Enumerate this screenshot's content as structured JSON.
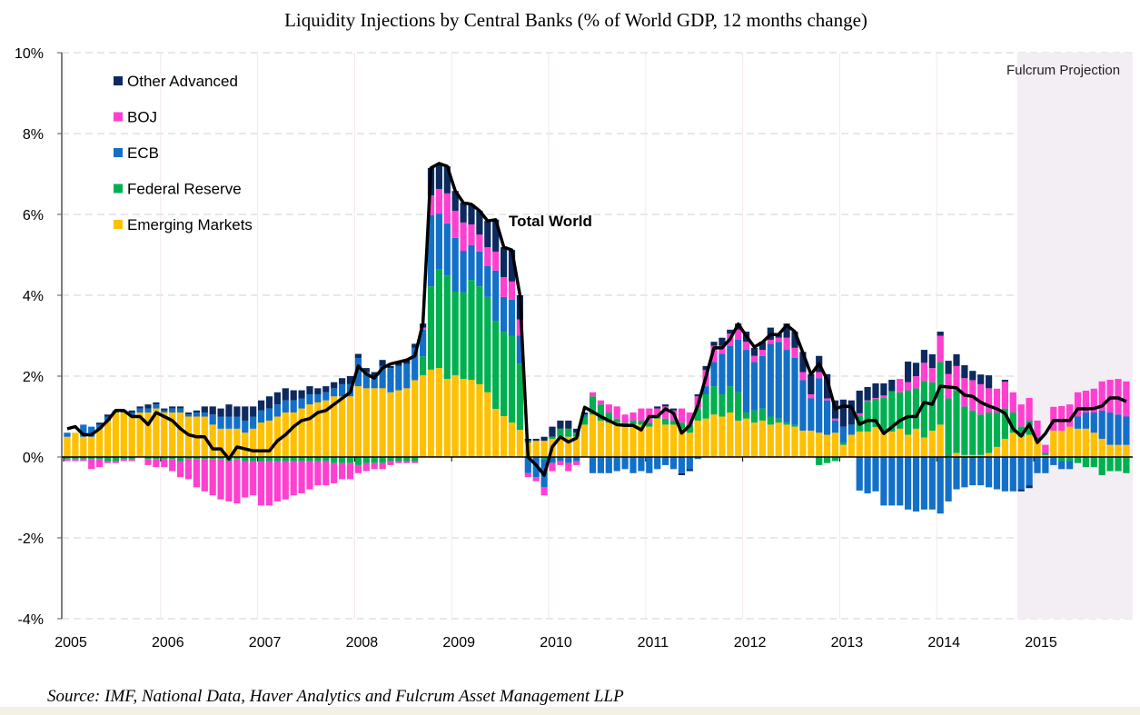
{
  "chart_data": {
    "type": "bar",
    "stacked": true,
    "title": "Liquidity Injections by Central Banks (% of World GDP, 12 months change)",
    "source": "Source: IMF, National Data, Haver Analytics and Fulcrum Asset Management LLP",
    "frequency": "monthly",
    "ylim": [
      -4,
      10
    ],
    "yticks": [
      {
        "value": 10,
        "label": "10%"
      },
      {
        "value": 8,
        "label": "8%"
      },
      {
        "value": 6,
        "label": "6%"
      },
      {
        "value": 4,
        "label": "4%"
      },
      {
        "value": 2,
        "label": "2%"
      },
      {
        "value": 0,
        "label": "0%"
      },
      {
        "value": -2,
        "label": "-2%"
      },
      {
        "value": -4,
        "label": "-4%"
      }
    ],
    "xticks": [
      "2005",
      "2006",
      "2007",
      "2008",
      "2009",
      "2010",
      "2011",
      "2012",
      "2013",
      "2014",
      "2015"
    ],
    "grid": "horizontal dashed",
    "legend_placement": "top-left",
    "projection": {
      "label": "Fulcrum Projection",
      "start": "2014-11",
      "end": "2015-12",
      "color": "#f3eef3"
    },
    "line_label": "Total World",
    "series": [
      {
        "name": "Emerging Markets",
        "color": "#ffc000",
        "values_by_year": {
          "2005": [
            0.5,
            0.6,
            0.5,
            0.5,
            0.7,
            0.9,
            1.1,
            1.1,
            1.0,
            1.1,
            1.1,
            1.2
          ],
          "2006": [
            1.1,
            1.1,
            1.1,
            1.0,
            1.0,
            1.0,
            0.8,
            0.7,
            0.7,
            0.7,
            0.6,
            0.7
          ],
          "2007": [
            0.85,
            0.9,
            1.0,
            1.1,
            1.1,
            1.2,
            1.3,
            1.35,
            1.4,
            1.5,
            1.5,
            1.5
          ],
          "2008": [
            1.75,
            1.7,
            1.7,
            1.7,
            1.6,
            1.65,
            1.7,
            1.9,
            2.02,
            2.16,
            2.2,
            1.93
          ],
          "2009": [
            2.02,
            1.93,
            1.91,
            1.8,
            1.6,
            1.19,
            1.01,
            0.85,
            0.67,
            0.35,
            0.4,
            0.4
          ],
          "2010": [
            0.45,
            0.5,
            0.5,
            0.5,
            0.8,
            1.05,
            0.9,
            0.85,
            0.85,
            0.75,
            0.8,
            0.8
          ],
          "2011": [
            0.75,
            0.95,
            0.8,
            0.8,
            0.7,
            0.6,
            0.9,
            0.95,
            1.05,
            1.0,
            1.1,
            0.9
          ],
          "2012": [
            0.95,
            0.85,
            0.9,
            0.8,
            0.85,
            0.8,
            0.75,
            0.65,
            0.65,
            0.6,
            0.55,
            0.6
          ],
          "2013": [
            0.3,
            0.55,
            0.63,
            0.63,
            0.74,
            0.63,
            0.63,
            0.7,
            0.55,
            0.7,
            0.48,
            0.65
          ],
          "2014": [
            0.8,
            0.0,
            0.1,
            0.05,
            0.05,
            0.05,
            0.1,
            0.25,
            0.45,
            0.6,
            0.5,
            0.55
          ],
          "2015": [
            0.4,
            0.05,
            0.65,
            0.65,
            0.75,
            0.7,
            0.7,
            0.6,
            0.45,
            0.3,
            0.3,
            0.3
          ]
        }
      },
      {
        "name": "Federal Reserve",
        "color": "#00b050",
        "values_by_year": {
          "2005": [
            -0.05,
            -0.05,
            -0.05,
            -0.05,
            -0.05,
            -0.1,
            -0.1,
            -0.05,
            -0.05,
            0,
            -0.05,
            -0.05
          ],
          "2006": [
            -0.05,
            -0.05,
            -0.1,
            -0.05,
            -0.05,
            -0.05,
            -0.05,
            -0.05,
            -0.1,
            -0.05,
            -0.1,
            -0.1
          ],
          "2007": [
            -0.1,
            -0.1,
            -0.1,
            -0.1,
            -0.1,
            -0.1,
            -0.1,
            -0.1,
            -0.1,
            -0.15,
            -0.15,
            -0.15
          ],
          "2008": [
            -0.2,
            -0.15,
            -0.15,
            -0.15,
            -0.1,
            -0.1,
            -0.1,
            -0.1,
            0.47,
            2.06,
            2.45,
            2.56
          ],
          "2009": [
            2.07,
            2.14,
            2.47,
            2.42,
            2.36,
            2.18,
            2.09,
            2.14,
            1.64,
            0.05,
            0,
            -0.05
          ],
          "2010": [
            0.05,
            0.2,
            0.2,
            0.1,
            0.2,
            0.45,
            0.4,
            0.25,
            0.1,
            0.1,
            0.1,
            0.1
          ],
          "2011": [
            0.1,
            0.05,
            0.15,
            0.1,
            0.15,
            0.2,
            0.3,
            0.6,
            0.7,
            0.55,
            0.65,
            0.7
          ],
          "2012": [
            0.15,
            0.3,
            0.3,
            0.2,
            0.1,
            0.05,
            0.05,
            0,
            0,
            -0.2,
            -0.15,
            -0.1
          ],
          "2013": [
            0.05,
            0,
            0.4,
            0.75,
            0.7,
            0.83,
            1.0,
            0.9,
            1.1,
            1.0,
            1.4,
            1.2
          ],
          "2014": [
            1.55,
            1.45,
            1.55,
            1.2,
            1.1,
            1.0,
            1.0,
            0.85,
            0.75,
            0.5,
            0.25,
            0.35
          ],
          "2015": [
            0.1,
            0.05,
            0,
            -0.1,
            -0.1,
            -0.15,
            -0.25,
            -0.25,
            -0.45,
            -0.35,
            -0.35,
            -0.4
          ]
        }
      },
      {
        "name": "ECB",
        "color": "#1270c8",
        "values_by_year": {
          "2005": [
            0.1,
            0,
            0.3,
            0.25,
            0.1,
            0.1,
            0.05,
            0.05,
            0.1,
            0.1,
            0.1,
            0.1
          ],
          "2006": [
            0.05,
            0.1,
            0.1,
            0.05,
            0.1,
            0.1,
            0.25,
            0.3,
            0.3,
            0.3,
            0.3,
            0.3
          ],
          "2007": [
            0.3,
            0.3,
            0.3,
            0.3,
            0.3,
            0.25,
            0.25,
            0.2,
            0.2,
            0.2,
            0.3,
            0.3
          ],
          "2008": [
            0.7,
            0.4,
            0.3,
            0.55,
            0.6,
            0.6,
            0.6,
            0.8,
            0.66,
            1.76,
            1.37,
            1.29
          ],
          "2009": [
            1.33,
            1.03,
            0.86,
            0.86,
            0.76,
            1.24,
            0.86,
            0.9,
            0.69,
            -0.4,
            -0.5,
            -0.7
          ],
          "2010": [
            -0.15,
            -0.1,
            -0.15,
            -0.1,
            0.05,
            -0.4,
            -0.4,
            -0.4,
            -0.35,
            -0.3,
            -0.4,
            -0.35
          ],
          "2011": [
            -0.4,
            -0.3,
            -0.2,
            -0.3,
            -0.4,
            -0.3,
            -0.05,
            0.2,
            0.6,
            1.0,
            1.0,
            1.3
          ],
          "2012": [
            1.55,
            1.2,
            1.3,
            1.8,
            1.9,
            1.8,
            1.65,
            1.25,
            0.8,
            1.35,
            0.85,
            0.3
          ],
          "2013": [
            0.4,
            0.25,
            -0.83,
            -0.9,
            -0.85,
            -1.2,
            -1.2,
            -1.2,
            -1.3,
            -1.35,
            -1.3,
            -1.3
          ],
          "2014": [
            -1.4,
            -1.1,
            -0.8,
            -0.75,
            -0.7,
            -0.7,
            -0.75,
            -0.8,
            -0.85,
            -0.85,
            -0.8,
            -0.7
          ],
          "2015": [
            -0.4,
            -0.4,
            -0.2,
            -0.2,
            -0.2,
            0.3,
            0.4,
            0.5,
            0.7,
            0.8,
            0.75,
            0.7
          ]
        }
      },
      {
        "name": "BOJ",
        "color": "#ff3fcf",
        "values_by_year": {
          "2005": [
            -0.05,
            -0.05,
            -0.05,
            -0.25,
            -0.2,
            -0.05,
            -0.05,
            -0.05,
            -0.05,
            0,
            -0.15,
            -0.2
          ],
          "2006": [
            -0.2,
            -0.3,
            -0.4,
            -0.5,
            -0.7,
            -0.8,
            -0.9,
            -1.0,
            -1.0,
            -1.1,
            -0.9,
            -0.85
          ],
          "2007": [
            -1.1,
            -1.1,
            -1.0,
            -0.95,
            -0.85,
            -0.8,
            -0.7,
            -0.6,
            -0.6,
            -0.5,
            -0.4,
            -0.4
          ],
          "2008": [
            -0.2,
            -0.2,
            -0.15,
            -0.15,
            -0.1,
            -0.05,
            -0.05,
            -0.05,
            0.05,
            0.49,
            0.61,
            0.74
          ],
          "2009": [
            0.67,
            0.7,
            0.51,
            0.42,
            0.47,
            0.47,
            0.49,
            0.45,
            0.4,
            -0.1,
            -0.1,
            -0.2
          ],
          "2010": [
            -0.2,
            -0.1,
            -0.2,
            -0.1,
            0,
            0.1,
            0.1,
            0.2,
            0.3,
            0.2,
            0.2,
            0.3
          ],
          "2011": [
            0.35,
            0.2,
            0.3,
            0.25,
            0.35,
            0.3,
            0.3,
            0.4,
            0.4,
            0.2,
            0.3,
            0.25
          ],
          "2012": [
            0.2,
            0.15,
            0.15,
            0.1,
            0.1,
            0.3,
            0.25,
            0.2,
            0.1,
            0.15,
            0.05,
            0.05
          ],
          "2013": [
            0,
            0,
            0.05,
            0.02,
            0.02,
            0.06,
            0,
            0.33,
            0.2,
            0.3,
            0.45,
            0.35
          ],
          "2014": [
            0.65,
            0.6,
            0.6,
            0.7,
            0.75,
            0.75,
            0.6,
            0.59,
            0.66,
            0.5,
            0.55,
            0.56
          ],
          "2015": [
            0.4,
            0.2,
            0.59,
            0.61,
            0.55,
            0.6,
            0.54,
            0.59,
            0.72,
            0.81,
            0.88,
            0.87
          ]
        }
      },
      {
        "name": "Other Advanced",
        "color": "#0d2a5e",
        "values_by_year": {
          "2005": [
            0,
            0,
            0,
            0,
            0.05,
            0.05,
            0,
            0,
            0.05,
            0.05,
            0.1,
            0.05
          ],
          "2006": [
            0.05,
            0.05,
            0.05,
            0.05,
            0.05,
            0.15,
            0.2,
            0.2,
            0.3,
            0.25,
            0.35,
            0.25
          ],
          "2007": [
            0.25,
            0.3,
            0.3,
            0.3,
            0.25,
            0.2,
            0.2,
            0.15,
            0.15,
            0.15,
            0.15,
            0.2
          ],
          "2008": [
            0.1,
            0.1,
            0.1,
            0.15,
            0.05,
            0.1,
            0.1,
            0.1,
            0.1,
            0.68,
            0.63,
            0.67
          ],
          "2009": [
            0.49,
            0.49,
            0.5,
            0.59,
            0.65,
            0.79,
            0.74,
            0.78,
            0.6,
            0.05,
            0.05,
            0.1
          ],
          "2010": [
            0.25,
            0.2,
            0.2,
            0.1,
            0.05,
            0,
            0,
            0,
            0,
            0,
            0,
            0
          ],
          "2011": [
            0,
            0.05,
            0.05,
            0.05,
            -0.05,
            -0.05,
            0.05,
            0.1,
            0.1,
            0.2,
            0.1,
            0.15
          ],
          "2012": [
            0.25,
            0.2,
            0.2,
            0.3,
            0.1,
            0.35,
            0.4,
            0.5,
            0.5,
            0.4,
            0.6,
            0.45
          ],
          "2013": [
            0.67,
            0.6,
            0.56,
            0.33,
            0.36,
            0.3,
            0.28,
            0,
            0.51,
            0.33,
            0.32,
            0.34
          ],
          "2014": [
            0.1,
            0.33,
            0.29,
            0.32,
            0.23,
            0.24,
            0.32,
            0,
            0.05,
            0,
            -0.05,
            -0.07
          ],
          "2015": [
            0,
            0,
            0,
            0,
            0,
            0,
            0,
            0,
            0,
            0,
            0,
            0
          ]
        }
      }
    ],
    "total_line": {
      "name": "Total World",
      "color": "#000000",
      "values_by_year": {
        "2005": [
          0.7,
          0.75,
          0.55,
          0.55,
          0.7,
          0.9,
          1.15,
          1.15,
          1.0,
          1.0,
          0.8,
          1.1
        ],
        "2006": [
          1.0,
          0.9,
          0.7,
          0.55,
          0.5,
          0.5,
          0.2,
          0.2,
          -0.05,
          0.25,
          0.2,
          0.15
        ],
        "2007": [
          0.15,
          0.15,
          0.4,
          0.55,
          0.75,
          0.9,
          0.95,
          1.1,
          1.15,
          1.3,
          1.45,
          1.6
        ],
        "2008": [
          2.25,
          2.05,
          1.95,
          2.2,
          2.3,
          2.35,
          2.4,
          2.5,
          3.3,
          7.15,
          7.26,
          7.19
        ],
        "2009": [
          6.58,
          6.29,
          6.25,
          6.09,
          5.84,
          5.87,
          5.19,
          5.12,
          4.0,
          0.0,
          -0.2,
          -0.45
        ],
        "2010": [
          0.25,
          0.5,
          0.37,
          0.47,
          1.23,
          1.12,
          1.0,
          0.9,
          0.8,
          0.78,
          0.78,
          0.67
        ],
        "2011": [
          1.0,
          1.0,
          1.19,
          1.08,
          0.59,
          0.78,
          1.27,
          1.98,
          2.7,
          2.7,
          2.92,
          3.29
        ],
        "2012": [
          2.99,
          2.72,
          2.84,
          3.03,
          3.03,
          3.26,
          3.1,
          2.58,
          2.04,
          2.31,
          1.91,
          1.19
        ],
        "2013": [
          1.26,
          1.24,
          0.81,
          0.9,
          0.9,
          0.58,
          0.74,
          0.9,
          1.0,
          1.0,
          1.35,
          1.3
        ],
        "2014": [
          1.75,
          1.73,
          1.71,
          1.53,
          1.5,
          1.35,
          1.26,
          1.19,
          1.08,
          0.7,
          0.52,
          0.81
        ],
        "2015": [
          0.36,
          0.58,
          0.9,
          0.9,
          0.9,
          1.19,
          1.19,
          1.2,
          1.26,
          1.46,
          1.46,
          1.37
        ]
      }
    },
    "legend_order": [
      "Other Advanced",
      "BOJ",
      "ECB",
      "Federal Reserve",
      "Emerging Markets"
    ]
  }
}
